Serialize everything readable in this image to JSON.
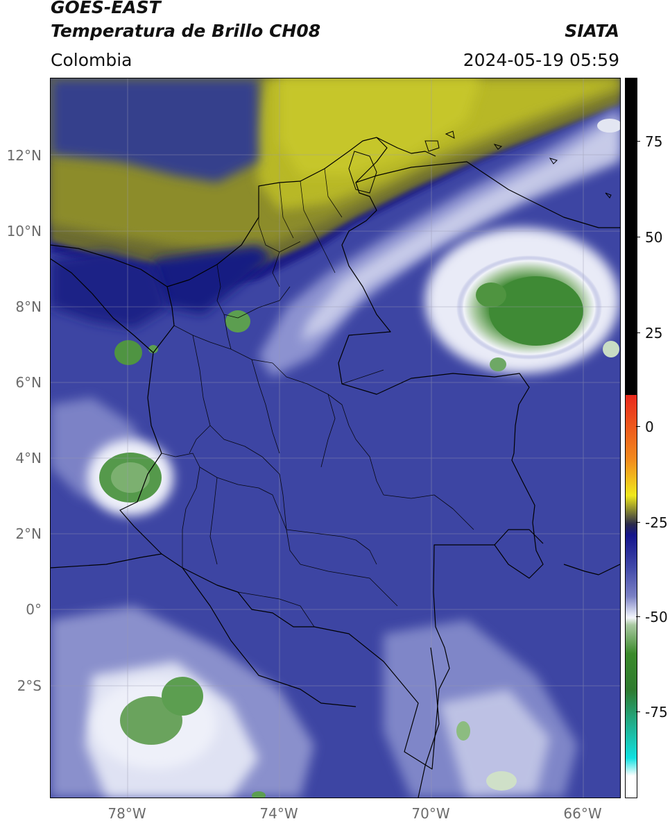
{
  "header": {
    "satellite": "GOES-EAST",
    "product": "Temperatura de Brillo CH08",
    "organization": "SIATA",
    "region": "Colombia",
    "datetime": "2024-05-19 05:59"
  },
  "map": {
    "lat_labels": [
      "12°N",
      "10°N",
      "8°N",
      "6°N",
      "4°N",
      "2°N",
      "0°",
      "2°S"
    ],
    "lon_labels": [
      "78°W",
      "74°W",
      "70°W",
      "66°W"
    ],
    "gridlines": true
  },
  "colorbar": {
    "tick_labels": [
      "75",
      "50",
      "25",
      "0",
      "-25",
      "-50",
      "-75"
    ],
    "colors": {
      "warm_black": "#000000",
      "red": "#e8281c",
      "orange": "#f28a1c",
      "yellow": "#f0e81c",
      "olive": "#8a8a30",
      "dark_navy": "#14148c",
      "blue": "#4048a8",
      "light": "#e0e4f4",
      "green": "#3a8a2a",
      "teal": "#20b090",
      "cyan": "#10e0e0"
    }
  }
}
